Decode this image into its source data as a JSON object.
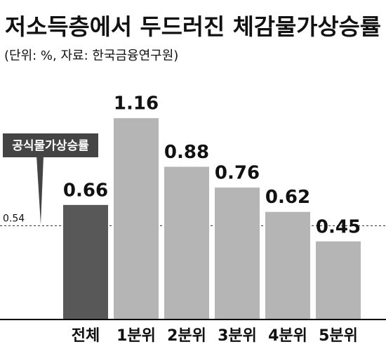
{
  "chart_data": {
    "type": "bar",
    "title": "저소득층에서 두드러진 체감물가상승률",
    "subtitle": "(단위: %, 자료: 한국금융연구원)",
    "categories": [
      "전체",
      "1분위",
      "2분위",
      "3분위",
      "4분위",
      "5분위"
    ],
    "values": [
      0.66,
      1.16,
      0.88,
      0.76,
      0.62,
      0.45
    ],
    "colors": [
      "#585858",
      "#b5b5b5",
      "#b5b5b5",
      "#b5b5b5",
      "#b5b5b5",
      "#b5b5b5"
    ],
    "ylim": [
      0,
      1.25
    ],
    "reference_line": {
      "value": 0.54,
      "label": "공식물가상승률"
    }
  }
}
